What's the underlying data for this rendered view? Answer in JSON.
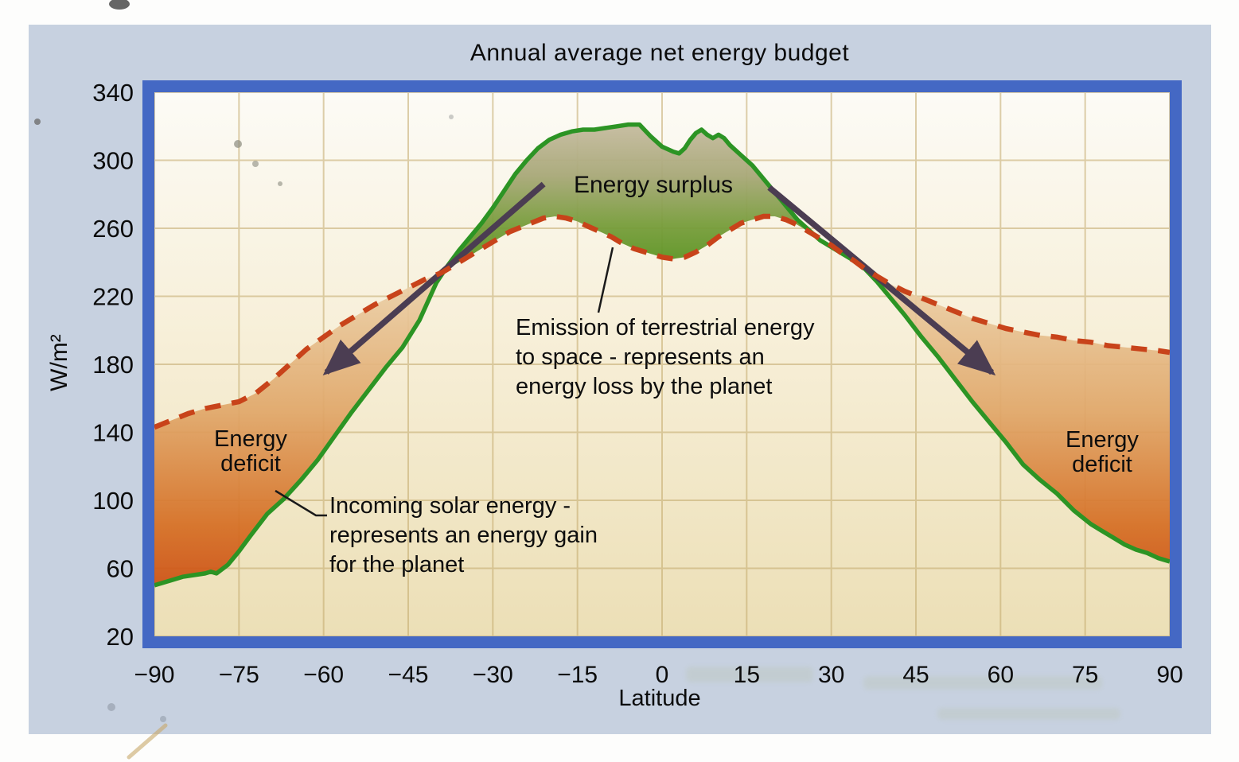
{
  "title": "Annual average net energy budget",
  "y_axis": {
    "unit_label": "W/m²",
    "tick_values": [
      340,
      300,
      260,
      220,
      180,
      140,
      100,
      60,
      20
    ],
    "tick_labels": [
      "340",
      "300",
      "260",
      "220",
      "180",
      "140",
      "100",
      "60",
      "20"
    ]
  },
  "x_axis": {
    "label": "Latitude",
    "tick_values": [
      -90,
      -75,
      -60,
      -45,
      -30,
      -15,
      0,
      15,
      30,
      45,
      60,
      75,
      90
    ],
    "tick_labels": [
      "−90",
      "−75",
      "−60",
      "−45",
      "−30",
      "−15",
      "0",
      "15",
      "30",
      "45",
      "60",
      "75",
      "90"
    ]
  },
  "annotations": {
    "surplus_label": "Energy surplus",
    "deficit_label": "Energy deficit",
    "emission_note": "Emission of terrestrial energy\nto space - represents an\nenergy loss by the planet",
    "solar_note": "Incoming solar energy -\nrepresents an energy gain\nfor the planet"
  },
  "colors": {
    "panel_background": "#c7d1e0",
    "frame_border": "#4468c4",
    "plot_bg_top": "#fcfbf6",
    "plot_bg_mid": "#f7efd8",
    "plot_bg_bottom": "#ecdfb6",
    "gridline": "#c3a96b",
    "solar_curve": "#2c9424",
    "emission_curve": "#c8431a",
    "surplus_fill_top": "#c8bda3",
    "surplus_fill_bottom": "#4f9118",
    "deficit_fill_top": "#ecd4ae",
    "deficit_fill_bottom": "#cc4d12",
    "arrow": "#4b3d52",
    "leader_line": "#1a1a1a"
  },
  "chart_data": {
    "type": "area",
    "title": "Annual average net energy budget",
    "xlabel": "Latitude",
    "ylabel": "W/m²",
    "xlim": [
      -90,
      90
    ],
    "ylim": [
      20,
      340
    ],
    "grid": {
      "on": true,
      "x_step": 15,
      "y_step": 40
    },
    "legend_position": "none",
    "series": [
      {
        "name": "Incoming solar energy (energy gain for the planet)",
        "style": "solid",
        "color": "#2c9424",
        "points": [
          [
            -90,
            50
          ],
          [
            -87,
            53
          ],
          [
            -85,
            55
          ],
          [
            -83,
            56
          ],
          [
            -81,
            57
          ],
          [
            -80,
            58
          ],
          [
            -79,
            57
          ],
          [
            -77,
            62
          ],
          [
            -75,
            70
          ],
          [
            -73,
            79
          ],
          [
            -70,
            92
          ],
          [
            -67,
            101
          ],
          [
            -64,
            112
          ],
          [
            -61,
            124
          ],
          [
            -58,
            138
          ],
          [
            -55,
            152
          ],
          [
            -52,
            165
          ],
          [
            -49,
            178
          ],
          [
            -46,
            190
          ],
          [
            -43,
            206
          ],
          [
            -40,
            228
          ],
          [
            -38,
            238
          ],
          [
            -36,
            247
          ],
          [
            -34,
            255
          ],
          [
            -32,
            263
          ],
          [
            -30,
            272
          ],
          [
            -28,
            282
          ],
          [
            -26,
            292
          ],
          [
            -24,
            300
          ],
          [
            -22,
            307
          ],
          [
            -20,
            312
          ],
          [
            -18,
            315
          ],
          [
            -16,
            317
          ],
          [
            -14,
            318
          ],
          [
            -12,
            318
          ],
          [
            -10,
            319
          ],
          [
            -8,
            320
          ],
          [
            -6,
            321
          ],
          [
            -4,
            321
          ],
          [
            -2,
            314
          ],
          [
            0,
            308
          ],
          [
            2,
            305
          ],
          [
            3,
            304
          ],
          [
            4,
            307
          ],
          [
            5,
            312
          ],
          [
            6,
            316
          ],
          [
            7,
            318
          ],
          [
            8,
            315
          ],
          [
            9,
            313
          ],
          [
            10,
            315
          ],
          [
            11,
            313
          ],
          [
            12,
            309
          ],
          [
            14,
            303
          ],
          [
            16,
            297
          ],
          [
            18,
            289
          ],
          [
            20,
            281
          ],
          [
            22,
            273
          ],
          [
            24,
            265
          ],
          [
            26,
            259
          ],
          [
            28,
            253
          ],
          [
            30,
            249
          ],
          [
            32,
            245
          ],
          [
            34,
            241
          ],
          [
            36,
            236
          ],
          [
            38,
            229
          ],
          [
            40,
            221
          ],
          [
            43,
            209
          ],
          [
            46,
            196
          ],
          [
            49,
            184
          ],
          [
            52,
            171
          ],
          [
            55,
            158
          ],
          [
            58,
            146
          ],
          [
            61,
            134
          ],
          [
            64,
            121
          ],
          [
            67,
            112
          ],
          [
            70,
            104
          ],
          [
            73,
            94
          ],
          [
            76,
            86
          ],
          [
            78,
            82
          ],
          [
            80,
            78
          ],
          [
            82,
            74
          ],
          [
            84,
            71
          ],
          [
            86,
            69
          ],
          [
            88,
            66
          ],
          [
            90,
            64
          ]
        ]
      },
      {
        "name": "Emission of terrestrial energy to space (energy loss by the planet)",
        "style": "dashed",
        "color": "#c8431a",
        "points": [
          [
            -90,
            143
          ],
          [
            -87,
            147
          ],
          [
            -84,
            151
          ],
          [
            -81,
            154
          ],
          [
            -78,
            156
          ],
          [
            -75,
            158
          ],
          [
            -72,
            163
          ],
          [
            -69,
            171
          ],
          [
            -66,
            180
          ],
          [
            -63,
            189
          ],
          [
            -60,
            196
          ],
          [
            -57,
            203
          ],
          [
            -54,
            209
          ],
          [
            -51,
            215
          ],
          [
            -48,
            220
          ],
          [
            -45,
            225
          ],
          [
            -42,
            230
          ],
          [
            -39,
            234
          ],
          [
            -36,
            240
          ],
          [
            -33,
            246
          ],
          [
            -30,
            252
          ],
          [
            -27,
            258
          ],
          [
            -24,
            262
          ],
          [
            -21,
            266
          ],
          [
            -19,
            267
          ],
          [
            -17,
            266
          ],
          [
            -15,
            264
          ],
          [
            -13,
            261
          ],
          [
            -11,
            258
          ],
          [
            -9,
            255
          ],
          [
            -7,
            251
          ],
          [
            -5,
            248
          ],
          [
            -3,
            246
          ],
          [
            -1,
            244
          ],
          [
            0,
            243
          ],
          [
            2,
            242
          ],
          [
            4,
            243
          ],
          [
            6,
            246
          ],
          [
            8,
            250
          ],
          [
            10,
            255
          ],
          [
            12,
            259
          ],
          [
            14,
            263
          ],
          [
            16,
            265
          ],
          [
            18,
            267
          ],
          [
            20,
            267
          ],
          [
            22,
            265
          ],
          [
            24,
            262
          ],
          [
            26,
            258
          ],
          [
            28,
            254
          ],
          [
            30,
            250
          ],
          [
            32,
            245
          ],
          [
            34,
            241
          ],
          [
            36,
            236
          ],
          [
            38,
            232
          ],
          [
            40,
            228
          ],
          [
            43,
            223
          ],
          [
            46,
            219
          ],
          [
            49,
            215
          ],
          [
            52,
            211
          ],
          [
            55,
            207
          ],
          [
            58,
            204
          ],
          [
            61,
            201
          ],
          [
            64,
            199
          ],
          [
            67,
            197
          ],
          [
            70,
            196
          ],
          [
            73,
            194
          ],
          [
            76,
            193
          ],
          [
            79,
            191
          ],
          [
            82,
            190
          ],
          [
            85,
            189
          ],
          [
            88,
            188
          ],
          [
            90,
            187
          ]
        ]
      }
    ],
    "regions": [
      {
        "label": "Energy surplus",
        "between": "solar above emission",
        "lat_range": [
          -39,
          36
        ]
      },
      {
        "label": "Energy deficit",
        "between": "emission above solar",
        "lat_range": [
          -90,
          -39
        ]
      },
      {
        "label": "Energy deficit",
        "between": "emission above solar",
        "lat_range": [
          36,
          90
        ]
      }
    ],
    "transport_arrows": [
      {
        "from": [
          -21,
          286
        ],
        "to": [
          -61,
          171
        ]
      },
      {
        "from": [
          19,
          284
        ],
        "to": [
          60,
          171
        ]
      }
    ]
  }
}
